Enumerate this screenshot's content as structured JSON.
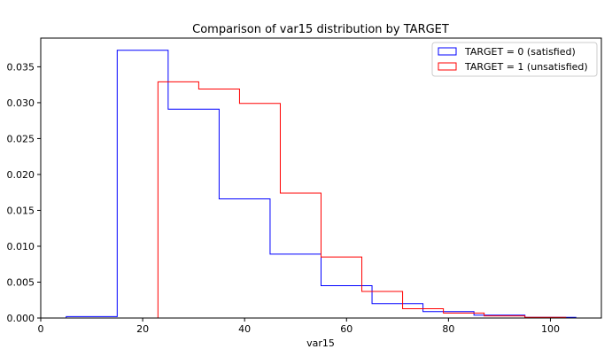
{
  "chart_data": {
    "type": "histogram-step",
    "title": "Comparison of var15 distribution by TARGET",
    "xlabel": "var15",
    "ylabel": "",
    "xlim": [
      0,
      110
    ],
    "ylim": [
      0,
      0.039
    ],
    "x_ticks": [
      0,
      20,
      40,
      60,
      80,
      100
    ],
    "x_tick_labels": [
      "0",
      "20",
      "40",
      "60",
      "80",
      "100"
    ],
    "y_ticks": [
      0.0,
      0.005,
      0.01,
      0.015,
      0.02,
      0.025,
      0.03,
      0.035
    ],
    "y_tick_labels": [
      "0.000",
      "0.005",
      "0.010",
      "0.015",
      "0.020",
      "0.025",
      "0.030",
      "0.035"
    ],
    "grid": false,
    "legend_position": "top-right",
    "series": [
      {
        "name": "TARGET = 0 (satisfied)",
        "color": "#0000ff",
        "bin_edges": [
          5,
          15,
          25,
          35,
          45,
          55,
          65,
          75,
          85,
          95,
          105
        ],
        "values": [
          0.0002,
          0.0373,
          0.0291,
          0.0166,
          0.0089,
          0.0045,
          0.002,
          0.0009,
          0.0004,
          0.0001
        ]
      },
      {
        "name": "TARGET = 1 (unsatisfied)",
        "color": "#ff0000",
        "bin_edges": [
          23,
          31,
          39,
          47,
          55,
          63,
          71,
          79,
          87,
          95,
          103
        ],
        "values": [
          0.0329,
          0.0319,
          0.0299,
          0.0174,
          0.0085,
          0.0037,
          0.0013,
          0.0007,
          0.0003,
          0.0001
        ]
      }
    ]
  }
}
